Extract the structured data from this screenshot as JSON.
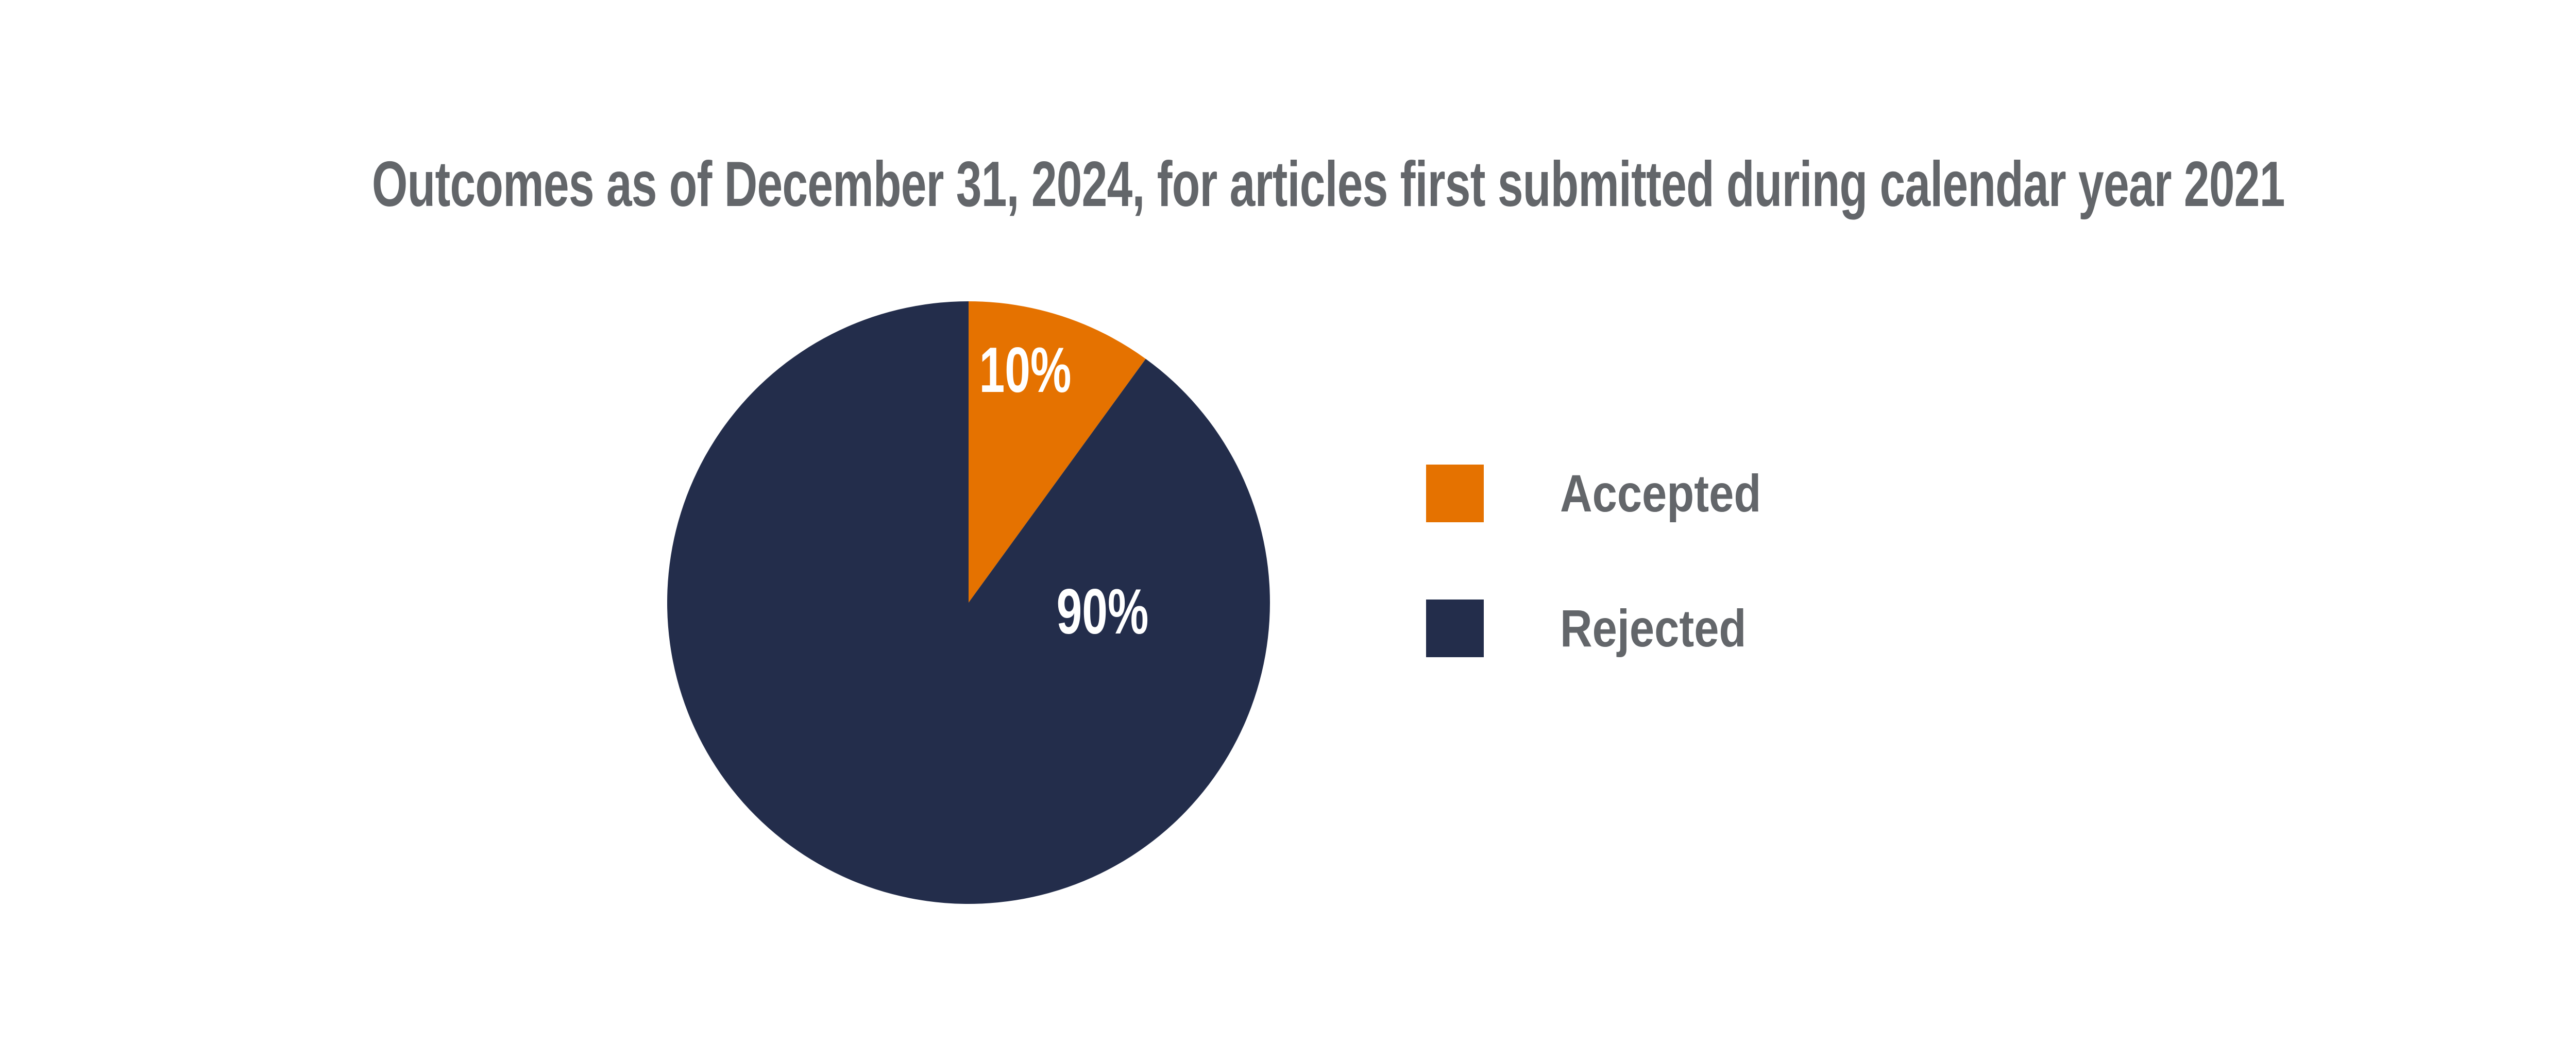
{
  "title": "Outcomes as of December 31, 2024, for articles first submitted during calendar year 2021",
  "colors": {
    "background": "#FFFFFF",
    "accepted_orange": "#E57200",
    "rejected_navy": "#232D4B",
    "title_gray": "#63666A",
    "slice_label_white": "#FFFFFF"
  },
  "chart_data": {
    "type": "pie",
    "title": "Outcomes as of December 31, 2024, for articles first submitted during calendar year 2021",
    "categories": [
      "Accepted",
      "Rejected"
    ],
    "values": [
      10,
      90
    ],
    "unit": "%",
    "slice_labels": [
      "10%",
      "90%"
    ],
    "colors": [
      "#E57200",
      "#232D4B"
    ],
    "start_angle_deg": -90,
    "direction": "clockwise",
    "grid": false,
    "legend_position": "right",
    "legend": [
      {
        "label": "Accepted",
        "color": "#E57200"
      },
      {
        "label": "Rejected",
        "color": "#232D4B"
      }
    ]
  }
}
